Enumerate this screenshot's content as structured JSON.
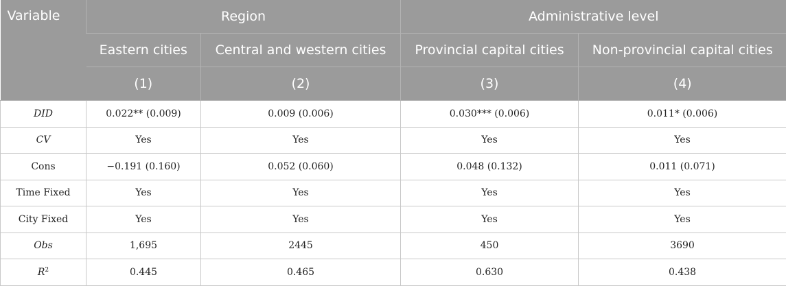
{
  "header": {
    "variable": "Variable",
    "group_region": "Region",
    "group_admin": "Administrative level",
    "columns": [
      "Eastern cities",
      "Central and western cities",
      "Provincial capital cities",
      "Non-provincial capital cities"
    ],
    "numbers": [
      "(1)",
      "(2)",
      "(3)",
      "(4)"
    ]
  },
  "rows": [
    {
      "label": "DID",
      "values": [
        "0.022** (0.009)",
        "0.009 (0.006)",
        "0.030*** (0.006)",
        "0.011* (0.006)"
      ]
    },
    {
      "label": "CV",
      "values": [
        "Yes",
        "Yes",
        "Yes",
        "Yes"
      ]
    },
    {
      "label": "Cons",
      "values": [
        "−0.191 (0.160)",
        "0.052 (0.060)",
        "0.048 (0.132)",
        "0.011 (0.071)"
      ]
    },
    {
      "label": "Time Fixed",
      "values": [
        "Yes",
        "Yes",
        "Yes",
        "Yes"
      ]
    },
    {
      "label": "City Fixed",
      "values": [
        "Yes",
        "Yes",
        "Yes",
        "Yes"
      ]
    },
    {
      "label": "Obs",
      "values": [
        "1,695",
        "2445",
        "450",
        "3690"
      ]
    },
    {
      "label": "R",
      "label_sup": "2",
      "values": [
        "0.445",
        "0.465",
        "0.630",
        "0.438"
      ]
    }
  ]
}
